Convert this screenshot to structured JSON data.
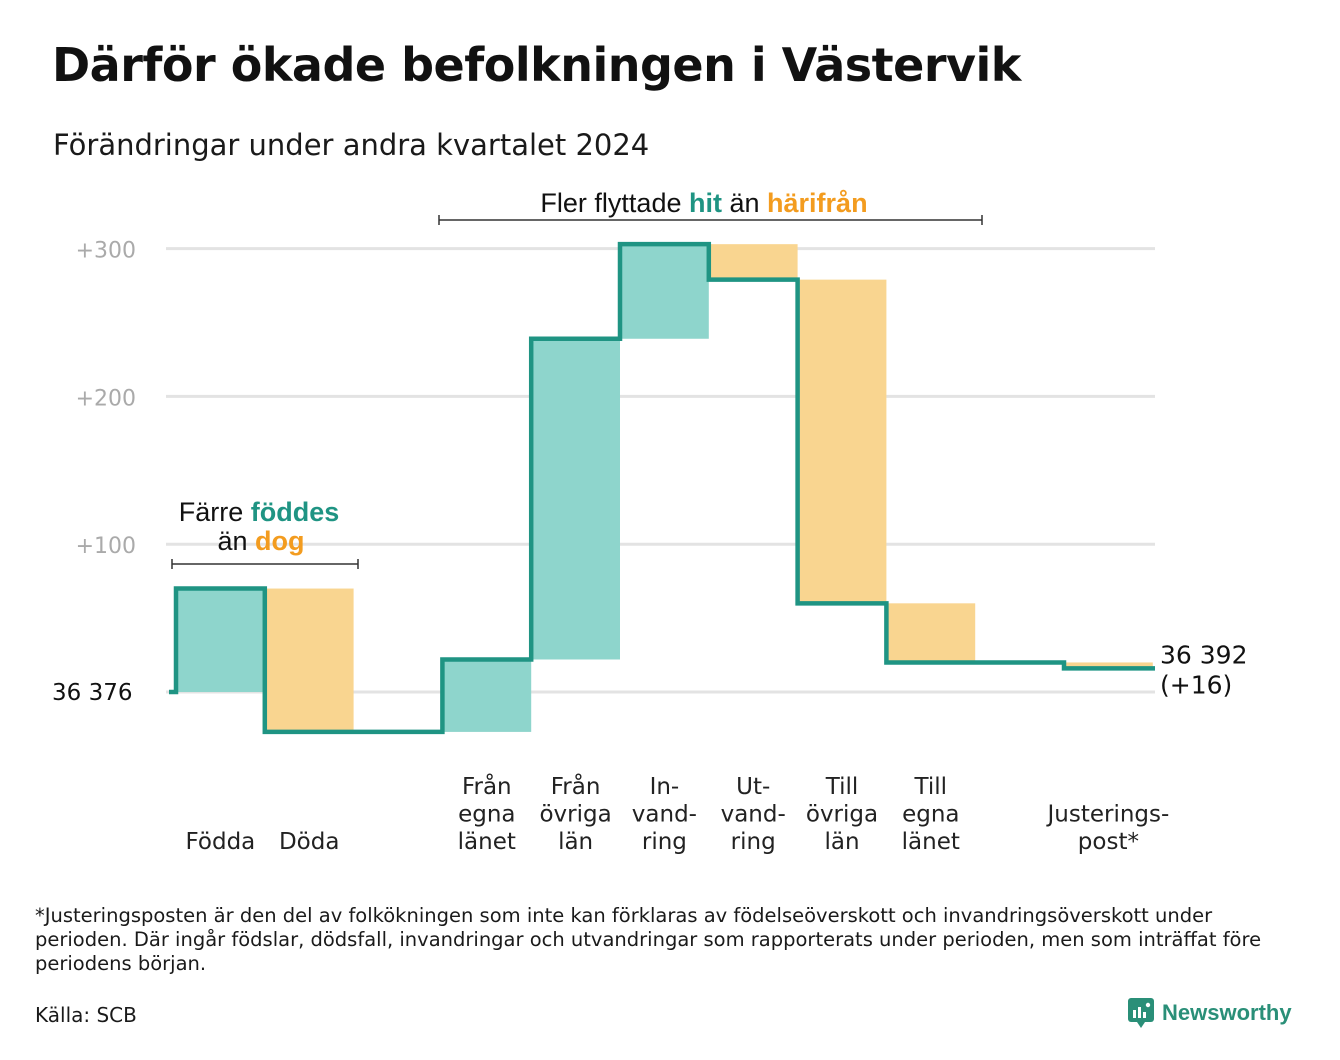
{
  "title": "Därför ökade befolkningen i Västervik",
  "subtitle": "Förändringar under andra kvartalet 2024",
  "colors": {
    "inflow_fill": "#8ed5cc",
    "outflow_fill": "#f9d590",
    "line": "#1f9483",
    "accent_teal": "#1f9483",
    "accent_orange": "#f39c1f",
    "grid": "#e3e3e3",
    "tick_text": "#aaaaaa",
    "bracket": "#333333"
  },
  "chart_data": {
    "type": "waterfall",
    "start_label": "36  376",
    "end_label_line1": "36 392",
    "end_label_line2": "(+16)",
    "y_ticks": [
      {
        "value": 300,
        "label": "+300"
      },
      {
        "value": 200,
        "label": "+200"
      },
      {
        "value": 100,
        "label": "+100"
      }
    ],
    "ylim": [
      -30,
      310
    ],
    "grid": true,
    "steps": [
      {
        "key": "fodda",
        "label_lines": [
          "Födda"
        ],
        "from": 0,
        "to": 70,
        "kind": "in"
      },
      {
        "key": "doda",
        "label_lines": [
          "Döda"
        ],
        "from": 70,
        "to": -27,
        "kind": "out"
      },
      {
        "key": "gap",
        "label_lines": [],
        "from": -27,
        "to": -27,
        "kind": "none"
      },
      {
        "key": "fran_egna",
        "label_lines": [
          "Från",
          "egna",
          "länet"
        ],
        "from": -27,
        "to": 22,
        "kind": "in"
      },
      {
        "key": "fran_ovriga",
        "label_lines": [
          "Från",
          "övriga",
          "län"
        ],
        "from": 22,
        "to": 239,
        "kind": "in"
      },
      {
        "key": "invandring",
        "label_lines": [
          "In-",
          "vand-",
          "ring"
        ],
        "from": 239,
        "to": 303,
        "kind": "in"
      },
      {
        "key": "utvandring",
        "label_lines": [
          "Ut-",
          "vand-",
          "ring"
        ],
        "from": 303,
        "to": 279,
        "kind": "out"
      },
      {
        "key": "till_ovriga",
        "label_lines": [
          "Till",
          "övriga",
          "län"
        ],
        "from": 279,
        "to": 60,
        "kind": "out"
      },
      {
        "key": "till_egna",
        "label_lines": [
          "Till",
          "egna",
          "länet"
        ],
        "from": 60,
        "to": 20,
        "kind": "out"
      },
      {
        "key": "gap2",
        "label_lines": [],
        "from": 20,
        "to": 20,
        "kind": "none"
      },
      {
        "key": "justering",
        "label_lines": [
          "Justerings-",
          "post*"
        ],
        "from": 20,
        "to": 16,
        "kind": "out"
      }
    ],
    "annotations": [
      {
        "key": "births",
        "parts": [
          [
            {
              "text": "Färre ",
              "color": "normal"
            },
            {
              "text": "föddes",
              "color": "teal"
            }
          ],
          [
            {
              "text": "än ",
              "color": "normal"
            },
            {
              "text": "dog",
              "color": "orange"
            }
          ]
        ]
      },
      {
        "key": "migration",
        "parts": [
          [
            {
              "text": "Fler flyttade ",
              "color": "normal"
            },
            {
              "text": "hit",
              "color": "teal"
            },
            {
              "text": "  än ",
              "color": "normal"
            },
            {
              "text": "härifrån",
              "color": "orange"
            }
          ]
        ]
      }
    ]
  },
  "footnote": "*Justeringsposten är den del av folkökningen som inte kan förklaras av födelseöverskott och invandringsöverskott under perioden. Där ingår födslar, dödsfall, invandringar och utvandringar som rapporterats under perioden, men som inträffat före periodens början.",
  "source": "Källa: SCB",
  "brand": {
    "name": "Newsworthy",
    "icon": "newsworthy-logo-icon"
  }
}
